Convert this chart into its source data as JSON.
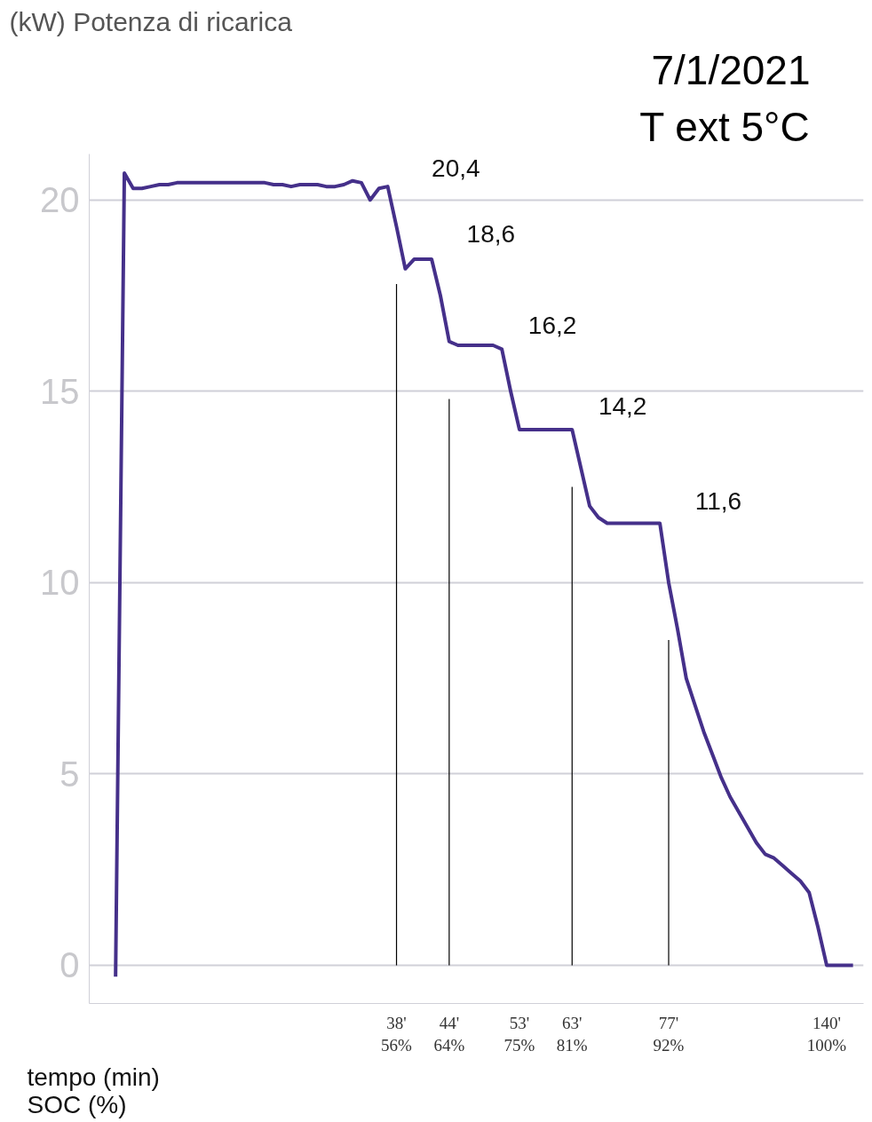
{
  "chart_data": {
    "type": "line",
    "title": "7/1/2021",
    "subtitle": "T ext 5°C",
    "ylabel": "(kW) Potenza di ricarica",
    "xlabel": "tempo (min)\nSOC (%)",
    "categories": [
      null,
      null,
      null,
      null,
      null,
      null,
      null,
      null,
      null,
      null,
      null,
      null,
      null,
      null,
      null,
      null,
      null,
      null,
      null,
      null,
      null,
      null,
      null,
      null,
      null,
      null,
      null,
      null,
      null,
      null,
      null,
      null,
      "38'\n56%",
      null,
      null,
      null,
      null,
      null,
      "44'\n64%",
      null,
      null,
      null,
      null,
      null,
      null,
      null,
      "53'\n75%",
      null,
      null,
      null,
      null,
      null,
      "63'\n81%",
      null,
      null,
      null,
      null,
      null,
      null,
      null,
      null,
      null,
      null,
      "77'\n92%",
      null,
      null,
      null,
      null,
      null,
      null,
      null,
      null,
      null,
      null,
      null,
      null,
      null,
      null,
      null,
      null,
      null,
      "140'\n100%",
      null,
      null,
      null
    ],
    "series": [
      {
        "color": "#45308a",
        "values": [
          -0.3,
          20.7,
          20.3,
          20.3,
          20.35,
          20.4,
          20.4,
          20.45,
          20.45,
          20.45,
          20.45,
          20.45,
          20.45,
          20.45,
          20.45,
          20.45,
          20.45,
          20.45,
          20.4,
          20.4,
          20.35,
          20.4,
          20.4,
          20.4,
          20.35,
          20.35,
          20.4,
          20.5,
          20.45,
          20.0,
          20.3,
          20.35,
          19.3,
          18.2,
          18.45,
          18.45,
          18.45,
          17.5,
          16.3,
          16.2,
          16.2,
          16.2,
          16.2,
          16.2,
          16.1,
          15.0,
          14.0,
          14.0,
          14.0,
          14.0,
          14.0,
          14.0,
          14.0,
          13.0,
          12.0,
          11.7,
          11.55,
          11.55,
          11.55,
          11.55,
          11.55,
          11.55,
          11.55,
          10.0,
          8.8,
          7.5,
          6.8,
          6.1,
          5.5,
          4.9,
          4.4,
          4.0,
          3.6,
          3.2,
          2.9,
          2.8,
          2.6,
          2.4,
          2.2,
          1.9,
          1.0,
          0.0,
          0.0,
          0.0,
          0.0
        ]
      }
    ],
    "ylim": [
      -1,
      21.2
    ],
    "yticks": [
      0,
      5,
      10,
      15,
      20
    ],
    "grid": "y",
    "marker": "none",
    "line_style": "solid",
    "ref_lines": [
      {
        "axis": "x",
        "value": "38'\n56%",
        "color": "#000000"
      },
      {
        "axis": "x",
        "value": "44'\n64%",
        "color": "#000000"
      },
      {
        "axis": "x",
        "value": "63'\n81%",
        "color": "#000000"
      },
      {
        "axis": "x",
        "value": "77'\n92%",
        "color": "#000000"
      }
    ],
    "annotations": [
      "20,4",
      "18,6",
      "16,2",
      "14,2",
      "11,6"
    ]
  }
}
